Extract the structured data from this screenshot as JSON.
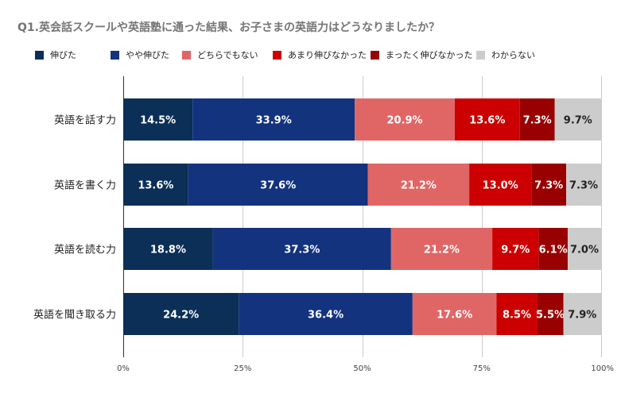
{
  "title": "Q1.英会話スクールや英語塾に通った結果、お子さまの英語力はどうなりましたか？",
  "chart_data": {
    "type": "bar",
    "orientation": "horizontal",
    "stacked": "percent",
    "title": "Q1.英会話スクールや英語塾に通った結果、お子さまの英語力はどうなりましたか？",
    "categories": [
      "英語を話す力",
      "英語を書く力",
      "英語を読む力",
      "英語を聞き取る力"
    ],
    "series": [
      {
        "name": "伸びた",
        "color": "#0b2f57",
        "values": [
          14.5,
          13.6,
          18.8,
          24.2
        ]
      },
      {
        "name": "やや伸びた",
        "color": "#13337f",
        "values": [
          33.9,
          37.6,
          37.3,
          36.4
        ]
      },
      {
        "name": "どちらでもない",
        "color": "#e06666",
        "values": [
          20.9,
          21.2,
          21.2,
          17.6
        ]
      },
      {
        "name": "あまり伸びなかった",
        "color": "#cc0000",
        "values": [
          13.6,
          13.0,
          9.7,
          8.5
        ]
      },
      {
        "name": "まったく伸びなかった",
        "color": "#990000",
        "values": [
          7.3,
          7.3,
          6.1,
          5.5
        ]
      },
      {
        "name": "わからない",
        "color": "#cccccc",
        "values": [
          9.7,
          7.3,
          7.0,
          7.9
        ]
      }
    ],
    "data_label_suffix": "%",
    "xlim": [
      0,
      100
    ],
    "xticks": [
      {
        "value": 0,
        "label": "0%"
      },
      {
        "value": 25,
        "label": "25%"
      },
      {
        "value": 50,
        "label": "50%"
      },
      {
        "value": 75,
        "label": "75%"
      },
      {
        "value": 100,
        "label": "100%"
      }
    ],
    "grid": true,
    "legend_position": "top"
  }
}
